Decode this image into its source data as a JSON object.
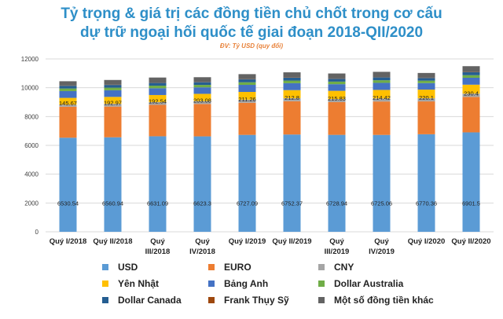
{
  "title_line1": "Tỷ trọng & giá trị các đồng tiền chủ chốt trong cơ cấu",
  "title_line2": "dự trữ ngoại hối quốc tế giai đoạn 2018-QII/2020",
  "unit_note": "ĐV: Tỷ USD (quy đổi)",
  "chart_data": {
    "type": "bar",
    "stacked": true,
    "title": "Tỷ trọng & giá trị các đồng tiền chủ chốt trong cơ cấu dự trữ ngoại hối quốc tế giai đoạn 2018-QII/2020",
    "subtitle": "ĐV: Tỷ USD (quy đổi)",
    "categories": [
      "Quý I/2018",
      "Quý II/2018",
      "Quý III/2018",
      "Quý IV/2018",
      "Quý I/2019",
      "Quý II/2019",
      "Quý III/2019",
      "Quý IV/2019",
      "Quý I/2020",
      "Quý II/2020"
    ],
    "category_lines": [
      [
        "Quý I/2018"
      ],
      [
        "Quý II/2018"
      ],
      [
        "Quý",
        "III/2018"
      ],
      [
        "Quý",
        "IV/2018"
      ],
      [
        "Quý I/2019"
      ],
      [
        "Quý II/2019"
      ],
      [
        "Quý",
        "III/2019"
      ],
      [
        "Quý",
        "IV/2019"
      ],
      [
        "Quý I/2020"
      ],
      [
        "Quý II/2020"
      ]
    ],
    "ylim": [
      0,
      12000
    ],
    "yticks": [
      0,
      2000,
      4000,
      6000,
      8000,
      10000,
      12000
    ],
    "grid": true,
    "legend_position": "bottom",
    "series": [
      {
        "name": "USD",
        "color": "#5b9bd5",
        "values": [
          6530.54,
          6560.94,
          6631.09,
          6623.3,
          6727.09,
          6752.37,
          6728.94,
          6725.06,
          6770.36,
          6901.5
        ],
        "labels": [
          "6530.54",
          "6560.94",
          "6631.09",
          "6623.3",
          "6727.09",
          "6752.37",
          "6728.94",
          "6725.06",
          "6770.36",
          "6901.5"
        ]
      },
      {
        "name": "EURO",
        "color": "#ed7d31",
        "values": [
          2150,
          2130,
          2180,
          2250,
          2230,
          2310,
          2270,
          2320,
          2280,
          2460
        ]
      },
      {
        "name": "CNY",
        "color": "#a5a5a5",
        "values": [
          145.67,
          192.97,
          192.54,
          203.08,
          211.26,
          212.8,
          215.83,
          214.42,
          220.1,
          230.4
        ],
        "labels": [
          "145.67",
          "192.97",
          "192.54",
          "203.08",
          "211.26",
          "212.8",
          "215.83",
          "214.42",
          "220.1",
          "230.4"
        ]
      },
      {
        "name": "Yên Nhật",
        "color": "#ffc000",
        "values": [
          470,
          480,
          490,
          500,
          540,
          560,
          570,
          590,
          600,
          620
        ]
      },
      {
        "name": "Bảng Anh",
        "color": "#4472c4",
        "values": [
          470,
          460,
          470,
          450,
          490,
          480,
          460,
          490,
          450,
          480
        ]
      },
      {
        "name": "Dollar Australia",
        "color": "#70ad47",
        "values": [
          180,
          180,
          180,
          170,
          180,
          180,
          180,
          180,
          170,
          180
        ]
      },
      {
        "name": "Dollar Canada",
        "color": "#255e91",
        "values": [
          190,
          190,
          200,
          190,
          200,
          200,
          200,
          200,
          190,
          210
        ]
      },
      {
        "name": "Frank Thụy Sỹ",
        "color": "#9e480e",
        "values": [
          15,
          15,
          15,
          15,
          15,
          15,
          15,
          15,
          15,
          15
        ]
      },
      {
        "name": "Một số đồng tiền khác",
        "color": "#636363",
        "values": [
          300,
          330,
          350,
          330,
          350,
          360,
          350,
          370,
          330,
          400
        ]
      }
    ]
  }
}
